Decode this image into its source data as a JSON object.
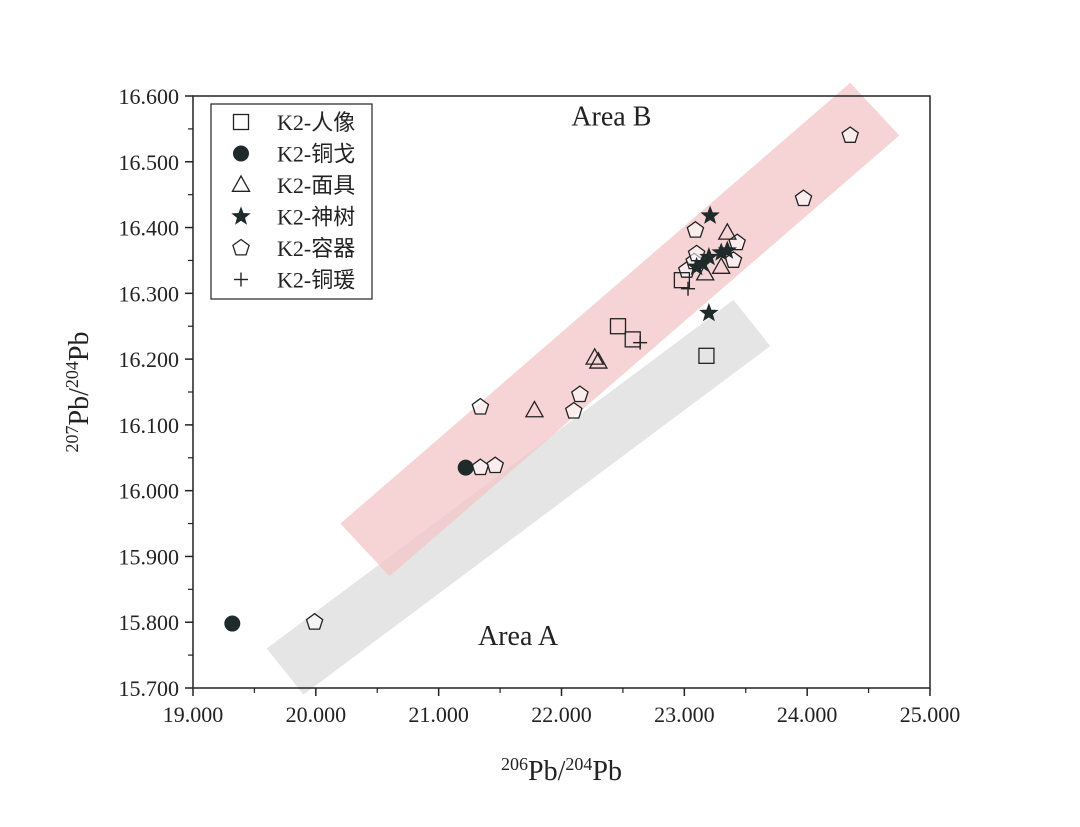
{
  "chart_data": {
    "type": "scatter",
    "title": "",
    "xlabel": "206Pb/204Pb",
    "ylabel": "207Pb/204Pb",
    "xlim": [
      19.0,
      25.0
    ],
    "ylim": [
      15.7,
      16.6
    ],
    "x_ticks": [
      "19.000",
      "20.000",
      "21.000",
      "22.000",
      "23.000",
      "24.000",
      "25.000"
    ],
    "y_ticks": [
      "15.700",
      "15.800",
      "15.900",
      "16.000",
      "16.100",
      "16.200",
      "16.300",
      "16.400",
      "16.500",
      "16.600"
    ],
    "grid": false,
    "legend_position": "top-left",
    "areas": [
      {
        "name": "Area A",
        "color": "#dcdcdc",
        "corners": [
          [
            19.6,
            15.76
          ],
          [
            23.4,
            16.29
          ],
          [
            23.7,
            16.22
          ],
          [
            19.9,
            15.69
          ]
        ]
      },
      {
        "name": "Area B",
        "color": "#f3c4c6",
        "corners": [
          [
            20.2,
            15.95
          ],
          [
            24.35,
            16.62
          ],
          [
            24.75,
            16.54
          ],
          [
            20.6,
            15.87
          ]
        ]
      }
    ],
    "area_labels": [
      {
        "text": "Area A",
        "x": 21.32,
        "y": 15.765
      },
      {
        "text": "Area B",
        "x": 22.08,
        "y": 16.555
      }
    ],
    "series": [
      {
        "name": "K2-人像",
        "marker": "square",
        "points": [
          [
            22.46,
            16.25
          ],
          [
            22.58,
            16.23
          ],
          [
            22.98,
            16.32
          ],
          [
            23.18,
            16.205
          ]
        ]
      },
      {
        "name": "K2-铜戈",
        "marker": "circle",
        "points": [
          [
            19.32,
            15.798
          ],
          [
            21.22,
            16.035
          ]
        ]
      },
      {
        "name": "K2-面具",
        "marker": "triangle",
        "points": [
          [
            21.78,
            16.122
          ],
          [
            22.27,
            16.202
          ],
          [
            22.3,
            16.196
          ],
          [
            23.17,
            16.33
          ],
          [
            23.3,
            16.34
          ],
          [
            23.35,
            16.392
          ]
        ]
      },
      {
        "name": "K2-神树",
        "marker": "star",
        "points": [
          [
            23.1,
            16.34
          ],
          [
            23.15,
            16.345
          ],
          [
            23.2,
            16.355
          ],
          [
            23.21,
            16.418
          ],
          [
            23.3,
            16.362
          ],
          [
            23.35,
            16.365
          ],
          [
            23.2,
            16.27
          ]
        ]
      },
      {
        "name": "K2-容器",
        "marker": "pentagon",
        "points": [
          [
            19.99,
            15.8
          ],
          [
            21.34,
            16.127
          ],
          [
            21.34,
            16.035
          ],
          [
            21.46,
            16.038
          ],
          [
            22.1,
            16.121
          ],
          [
            22.15,
            16.146
          ],
          [
            23.02,
            16.335
          ],
          [
            23.08,
            16.348
          ],
          [
            23.09,
            16.396
          ],
          [
            23.1,
            16.36
          ],
          [
            23.4,
            16.35
          ],
          [
            23.43,
            16.377
          ],
          [
            23.97,
            16.444
          ],
          [
            24.35,
            16.54
          ]
        ]
      },
      {
        "name": "K2-铜瑗",
        "marker": "plus",
        "points": [
          [
            23.03,
            16.307
          ],
          [
            22.64,
            16.225
          ]
        ]
      }
    ]
  }
}
